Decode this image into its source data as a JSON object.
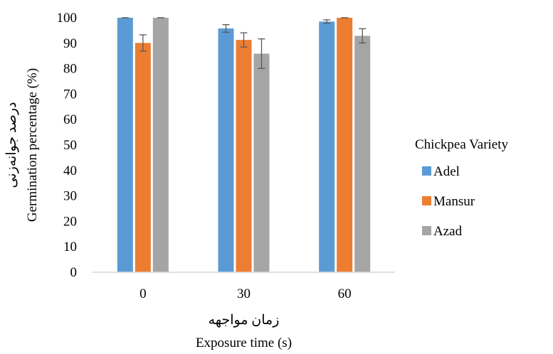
{
  "chart_data": {
    "type": "bar",
    "categories": [
      "0",
      "30",
      "60"
    ],
    "series": [
      {
        "name": "Adel",
        "color": "#5b9bd5",
        "values": [
          100,
          95.8,
          98.5
        ],
        "errors": [
          0,
          1.5,
          0.7
        ]
      },
      {
        "name": "Mansur",
        "color": "#ed7d31",
        "values": [
          90.1,
          91.3,
          100
        ],
        "errors": [
          3.2,
          2.8,
          0
        ]
      },
      {
        "name": "Azad",
        "color": "#a5a5a5",
        "values": [
          100,
          85.9,
          92.9
        ],
        "errors": [
          0,
          5.8,
          2.8
        ]
      }
    ],
    "xlabel": [
      "زمان مواجهه",
      "Exposure time (s)"
    ],
    "ylabel": [
      "درصد جوانه‌زنی",
      "Germination percentage (%)"
    ],
    "ylim": [
      0,
      100
    ],
    "yticks": [
      0,
      10,
      20,
      30,
      40,
      50,
      60,
      70,
      80,
      90,
      100
    ],
    "grid": false,
    "legend": {
      "title": "Chickpea Variety",
      "position": "right"
    }
  }
}
